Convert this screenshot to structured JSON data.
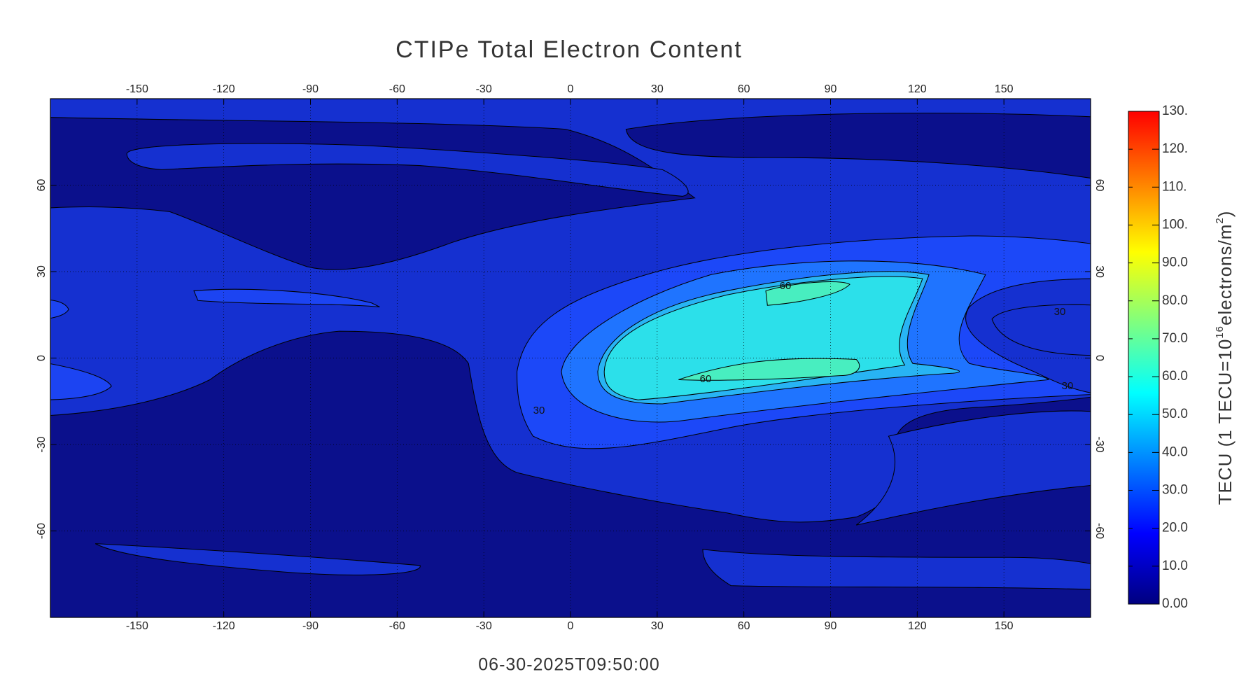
{
  "chart_data": {
    "type": "contour_map",
    "title": "CTIPe Total Electron Content",
    "subtitle": "06-30-2025T09:50:00",
    "xlim": [
      -180,
      180
    ],
    "ylim": [
      -90,
      90
    ],
    "xticks": [
      -150,
      -120,
      -90,
      -60,
      -30,
      0,
      30,
      60,
      90,
      120,
      150
    ],
    "yticks": [
      -60,
      -30,
      0,
      30,
      60
    ],
    "grid": true,
    "contour_labels": [
      60,
      60,
      30,
      30,
      30
    ],
    "colorbar": {
      "clim": [
        0,
        130
      ],
      "ticks": [
        {
          "value": 0,
          "label": "0.00"
        },
        {
          "value": 10,
          "label": "10.0"
        },
        {
          "value": 20,
          "label": "20.0"
        },
        {
          "value": 30,
          "label": "30.0"
        },
        {
          "value": 40,
          "label": "40.0"
        },
        {
          "value": 50,
          "label": "50.0"
        },
        {
          "value": 60,
          "label": "60.0"
        },
        {
          "value": 70,
          "label": "70.0"
        },
        {
          "value": 80,
          "label": "80.0"
        },
        {
          "value": 90,
          "label": "90.0"
        },
        {
          "value": 100,
          "label": "100."
        },
        {
          "value": 110,
          "label": "110."
        },
        {
          "value": 120,
          "label": "120."
        },
        {
          "value": 130,
          "label": "130."
        }
      ],
      "label_parts": [
        "TECU (1 TECU=10",
        "16",
        "electrons/m",
        "2",
        ")"
      ],
      "colors": [
        "#00007f",
        "#0000ff",
        "#007fff",
        "#00ffff",
        "#7fff7f",
        "#ffff00",
        "#ff7f00",
        "#ff0000"
      ]
    }
  }
}
